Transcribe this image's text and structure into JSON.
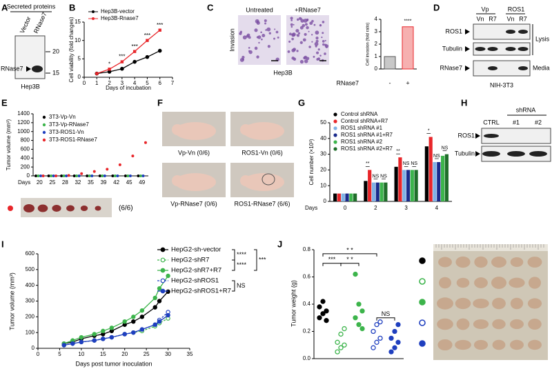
{
  "panel_labels": [
    "A",
    "B",
    "C",
    "D",
    "E",
    "F",
    "G",
    "H",
    "I",
    "J"
  ],
  "A": {
    "header": "Secreted proteins",
    "lanes": [
      "Vector",
      "RNase7"
    ],
    "band_label": "RNase7",
    "markers": [
      20,
      15
    ],
    "cell_line": "Hep3B"
  },
  "B": {
    "type": "line",
    "x_label": "Days of incubation",
    "y_label": "Cell viability (fold changes)",
    "x": [
      1,
      2,
      3,
      4,
      5,
      6
    ],
    "xlim": [
      0,
      7
    ],
    "xticks": [
      0,
      1,
      2,
      3,
      4,
      5,
      6,
      7
    ],
    "ylim": [
      0,
      15
    ],
    "yticks": [
      0,
      5,
      10,
      15
    ],
    "series": [
      {
        "name": "Hep3B-vector",
        "color": "#000000",
        "marker": "circle",
        "values": [
          1.0,
          1.5,
          2.3,
          4.2,
          5.5,
          7.2
        ]
      },
      {
        "name": "Hep3B-Rnase7",
        "color": "#e8262a",
        "marker": "square",
        "values": [
          1.0,
          2.2,
          4.2,
          7.0,
          10.0,
          12.8
        ]
      }
    ],
    "annotations": [
      "*",
      "***",
      "***",
      "***",
      "***"
    ]
  },
  "C": {
    "images": [
      "Untreated",
      "+RNase7"
    ],
    "row_label": "Invasion",
    "cell_line": "Hep3B",
    "chart": {
      "type": "bar",
      "y_label": "Cell invasion (fold ratio)",
      "x_label": "RNase7",
      "categories": [
        "-",
        "+"
      ],
      "values": [
        1.0,
        3.4
      ],
      "colors": [
        "#c8c8c8",
        "#f6b0b0"
      ],
      "ylim": [
        0,
        4
      ],
      "yticks": [
        0,
        1,
        2,
        3,
        4
      ],
      "annotation": "****"
    }
  },
  "D": {
    "groups": [
      "Vp",
      "ROS1"
    ],
    "lanes": [
      "Vn",
      "R7",
      "Vn",
      "R7"
    ],
    "rows": [
      "ROS1",
      "Tubulin",
      "RNase7"
    ],
    "brackets": [
      "Lysis",
      "Media"
    ],
    "cell_line": "NIH-3T3"
  },
  "E": {
    "type": "scatter",
    "y_label": "Tumor volume (mm³)",
    "x_label": "Days",
    "categories": [
      20,
      25,
      28,
      32,
      35,
      39,
      42,
      45,
      49
    ],
    "ylim": [
      0,
      1400
    ],
    "yticks": [
      0,
      200,
      400,
      600,
      800,
      1000,
      1200,
      1400
    ],
    "series": [
      {
        "name": "3T3-Vp-Vn",
        "color": "#000000",
        "values": [
          0,
          0,
          0,
          0,
          0,
          0,
          0,
          0,
          0
        ]
      },
      {
        "name": "3T3-Vp-RNase7",
        "color": "#3cb44b",
        "values": [
          0,
          0,
          0,
          0,
          0,
          0,
          0,
          0,
          0
        ]
      },
      {
        "name": "3T3-ROS1-Vn",
        "color": "#1f3fbf",
        "values": [
          0,
          0,
          0,
          0,
          0,
          0,
          0,
          0,
          0
        ]
      },
      {
        "name": "3T3-ROS1-RNase7",
        "color": "#e8262a",
        "values": [
          0,
          0,
          10,
          50,
          100,
          150,
          250,
          450,
          750
        ]
      }
    ],
    "tumor_count": "(6/6)"
  },
  "F": {
    "labels": [
      "Vp-Vn (0/6)",
      "ROS1-Vn (0/6)",
      "Vp-RNase7 (0/6)",
      "ROS1-RNase7 (6/6)"
    ]
  },
  "G": {
    "type": "bar",
    "x_label": "Days",
    "y_label": "Cell number (×10³)",
    "categories": [
      0,
      2,
      3,
      4
    ],
    "ylim": [
      0,
      50
    ],
    "yticks": [
      0,
      10,
      20,
      30,
      40,
      50
    ],
    "series": [
      {
        "name": "Control shRNA",
        "color": "#000000",
        "values": [
          5,
          13,
          22,
          35
        ]
      },
      {
        "name": "Control shRNA+R7",
        "color": "#e8262a",
        "values": [
          5,
          20,
          28,
          41
        ]
      },
      {
        "name": "ROS1 shRNA #1",
        "color": "#7fb2e5",
        "values": [
          5,
          12,
          20,
          25
        ]
      },
      {
        "name": "ROS1 shRNA #1+R7",
        "color": "#1a2a8c",
        "values": [
          5,
          12,
          20,
          25
        ]
      },
      {
        "name": "ROS1 shRNA #2",
        "color": "#3cb44b",
        "values": [
          5,
          12,
          20,
          29
        ]
      },
      {
        "name": "ROS1 shRNA #2+R7",
        "color": "#1f6e2a",
        "values": [
          5,
          12,
          20,
          30
        ]
      }
    ],
    "annotations": [
      "**",
      "NS",
      "NS",
      "**",
      "NS",
      "NS",
      "*",
      "NS",
      "NS"
    ]
  },
  "H": {
    "header": "shRNA",
    "lanes": [
      "CTRL",
      "#1",
      "#2"
    ],
    "rows": [
      "ROS1",
      "Tubulin"
    ]
  },
  "I": {
    "type": "line",
    "x_label": "Days post tumor inoculation",
    "y_label": "Tumor volume (mm³)",
    "x": [
      6,
      8,
      10,
      13,
      15,
      17,
      20,
      22,
      24,
      27,
      28,
      30
    ],
    "xlim": [
      0,
      35
    ],
    "xticks": [
      0,
      5,
      10,
      15,
      20,
      25,
      30,
      35
    ],
    "ylim": [
      0,
      600
    ],
    "yticks": [
      0,
      100,
      200,
      300,
      400,
      500,
      600
    ],
    "series": [
      {
        "name": "HepG2-sh-vector",
        "color": "#000000",
        "filled": true,
        "dashed": false,
        "values": [
          30,
          40,
          60,
          80,
          90,
          110,
          150,
          170,
          200,
          260,
          300,
          360
        ]
      },
      {
        "name": "HepG2-shR7",
        "color": "#3cb44b",
        "filled": false,
        "dashed": true,
        "values": [
          20,
          30,
          40,
          50,
          60,
          70,
          90,
          100,
          110,
          140,
          160,
          190
        ]
      },
      {
        "name": "HepG2-shR7+R7",
        "color": "#3cb44b",
        "filled": true,
        "dashed": false,
        "values": [
          30,
          50,
          70,
          90,
          110,
          130,
          170,
          200,
          240,
          320,
          380,
          460
        ]
      },
      {
        "name": "HepG2-shROS1",
        "color": "#1f3fbf",
        "filled": false,
        "dashed": true,
        "values": [
          20,
          30,
          40,
          50,
          60,
          70,
          90,
          100,
          120,
          150,
          180,
          230
        ]
      },
      {
        "name": "HepG2-shROS1+R7",
        "color": "#1f3fbf",
        "filled": true,
        "dashed": false,
        "values": [
          20,
          30,
          40,
          50,
          60,
          70,
          90,
          100,
          120,
          150,
          170,
          210
        ]
      }
    ],
    "annotations": [
      "****",
      "****",
      "***",
      "NS"
    ]
  },
  "J": {
    "type": "dot",
    "y_label": "Tumor weight (g)",
    "ylim": [
      0,
      0.8
    ],
    "yticks": [
      {
        "value": 0,
        "label": "0.0"
      },
      0.2,
      0.4,
      0.6,
      0.8
    ],
    "series": [
      {
        "color": "#000000",
        "filled": true,
        "values": [
          0.3,
          0.33,
          0.35,
          0.38,
          0.42,
          0.28
        ]
      },
      {
        "color": "#3cb44b",
        "filled": false,
        "values": [
          0.05,
          0.08,
          0.1,
          0.12,
          0.18,
          0.22
        ]
      },
      {
        "color": "#3cb44b",
        "filled": true,
        "values": [
          0.62,
          0.4,
          0.35,
          0.3,
          0.25,
          0.22
        ]
      },
      {
        "color": "#1f3fbf",
        "filled": false,
        "values": [
          0.08,
          0.12,
          0.15,
          0.2,
          0.25,
          0.27
        ]
      },
      {
        "color": "#1f3fbf",
        "filled": true,
        "values": [
          0.05,
          0.08,
          0.12,
          0.15,
          0.2,
          0.25
        ]
      }
    ],
    "annotations": [
      "* *",
      "***",
      "* *",
      "NS"
    ]
  }
}
